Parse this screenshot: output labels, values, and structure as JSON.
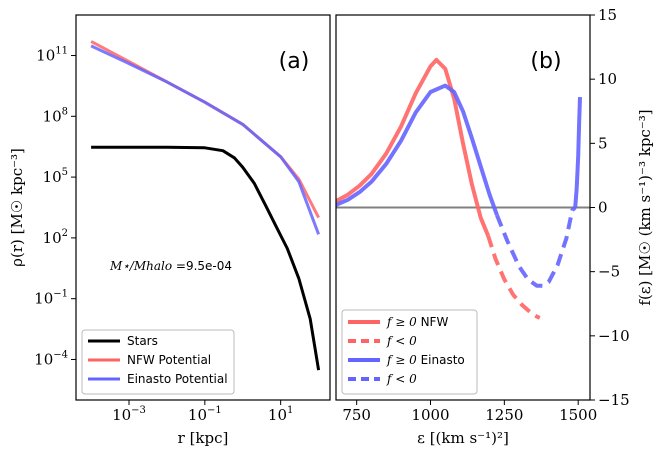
{
  "chart_data": [
    {
      "panel": "(a)",
      "type": "line",
      "xlabel": "r  [kpc]",
      "ylabel": "ρ(r)  [M☉ kpc⁻³]",
      "xscale": "log",
      "yscale": "log",
      "xlim": [
        4e-05,
        200
      ],
      "ylim": [
        1e-06,
        10000000000000.0
      ],
      "xticks": [
        {
          "value": 0.001,
          "base": "10",
          "exp": "−3"
        },
        {
          "value": 0.1,
          "base": "10",
          "exp": "−1"
        },
        {
          "value": 10,
          "base": "10",
          "exp": "1"
        }
      ],
      "yticks": [
        {
          "value": 0.0001,
          "base": "10",
          "exp": "−4"
        },
        {
          "value": 0.1,
          "base": "10",
          "exp": "−1"
        },
        {
          "value": 100,
          "base": "10",
          "exp": "2"
        },
        {
          "value": 100000,
          "base": "10",
          "exp": "5"
        },
        {
          "value": 100000000,
          "base": "10",
          "exp": "8"
        },
        {
          "value": 100000000000,
          "base": "10",
          "exp": "11"
        }
      ],
      "annotation": {
        "label": "M⋆/Mhalo =",
        "value": "9.5e-04"
      },
      "legend": "lower-left",
      "series": [
        {
          "name": "Stars",
          "color": "#000000",
          "style": "solid",
          "x": [
            0.0001,
            0.001,
            0.01,
            0.1,
            0.3,
            0.6,
            1,
            2,
            4,
            8,
            15,
            30,
            60,
            100
          ],
          "y": [
            3000000,
            3000000,
            3000000,
            2800000,
            2000000,
            900000,
            300000,
            50000,
            4000,
            300,
            30,
            1,
            0.01,
            3e-05
          ]
        },
        {
          "name": "NFW Potential",
          "color": "#ff6464",
          "style": "solid",
          "x": [
            0.0001,
            0.001,
            0.01,
            0.1,
            1,
            10,
            30,
            100
          ],
          "y": [
            500000000000,
            50000000000,
            5000000000,
            500000000,
            40000000,
            1000000,
            80000,
            1000
          ]
        },
        {
          "name": "Einasto Potential",
          "color": "#6464ff",
          "style": "solid",
          "x": [
            0.0001,
            0.001,
            0.01,
            0.1,
            1,
            10,
            30,
            100
          ],
          "y": [
            300000000000,
            40000000000,
            5000000000,
            500000000,
            40000000,
            1000000,
            60000,
            150
          ]
        }
      ]
    },
    {
      "panel": "(b)",
      "type": "line",
      "xlabel": "ε  [(km s⁻¹)²]",
      "ylabel": "f(ε)  [M☉ (km s⁻¹)⁻³ kpc⁻³]",
      "xlim": [
        680,
        1540
      ],
      "ylim": [
        -15,
        15
      ],
      "xticks": [
        750,
        1000,
        1250,
        1500
      ],
      "yticks": [
        -15,
        -10,
        -5,
        0,
        5,
        10,
        15
      ],
      "zero_line_color": "#808080",
      "legend": "lower-left",
      "legend_entries": [
        {
          "prefix": "f ≥ 0",
          "suffix": " NFW",
          "color": "#ff6464",
          "style": "solid"
        },
        {
          "prefix": "f < 0",
          "suffix": "",
          "color": "#ff6464",
          "style": "dashed"
        },
        {
          "prefix": "f ≥ 0",
          "suffix": " Einasto",
          "color": "#6464ff",
          "style": "solid"
        },
        {
          "prefix": "f < 0",
          "suffix": "",
          "color": "#6464ff",
          "style": "dashed"
        }
      ],
      "series": [
        {
          "color": "#ff6464",
          "style": "solid",
          "x": [
            680,
            720,
            760,
            800,
            850,
            900,
            950,
            1000,
            1020,
            1050,
            1080,
            1110,
            1140,
            1170,
            1195
          ],
          "y": [
            0.5,
            1.0,
            1.7,
            2.6,
            4.2,
            6.3,
            8.9,
            11.0,
            11.5,
            10.8,
            8.5,
            5.0,
            1.8,
            -0.8,
            -2.2
          ]
        },
        {
          "color": "#ff6464",
          "style": "dashed",
          "x": [
            1195,
            1220,
            1250,
            1280,
            1310,
            1340,
            1360,
            1370
          ],
          "y": [
            -2.2,
            -4.0,
            -5.6,
            -6.8,
            -7.6,
            -8.2,
            -8.5,
            -8.6
          ]
        },
        {
          "color": "#6464ff",
          "style": "solid",
          "x": [
            680,
            720,
            760,
            800,
            850,
            900,
            950,
            1000,
            1050,
            1080,
            1110,
            1140,
            1170,
            1200,
            1225
          ],
          "y": [
            0.2,
            0.6,
            1.2,
            2.0,
            3.4,
            5.2,
            7.4,
            9.0,
            9.5,
            9.0,
            7.5,
            5.4,
            3.2,
            1.0,
            -0.6
          ]
        },
        {
          "color": "#6464ff",
          "style": "dashed",
          "x": [
            1225,
            1260,
            1300,
            1330,
            1360,
            1380,
            1400,
            1430,
            1460,
            1480,
            1490
          ],
          "y": [
            -0.6,
            -2.6,
            -4.6,
            -5.6,
            -6.1,
            -6.1,
            -5.8,
            -4.5,
            -2.4,
            -0.2,
            0.0
          ]
        },
        {
          "color": "#6464ff",
          "style": "solid",
          "x": [
            1490,
            1495,
            1500,
            1503,
            1506
          ],
          "y": [
            0.0,
            1.5,
            4.0,
            6.5,
            8.6
          ]
        }
      ]
    }
  ]
}
